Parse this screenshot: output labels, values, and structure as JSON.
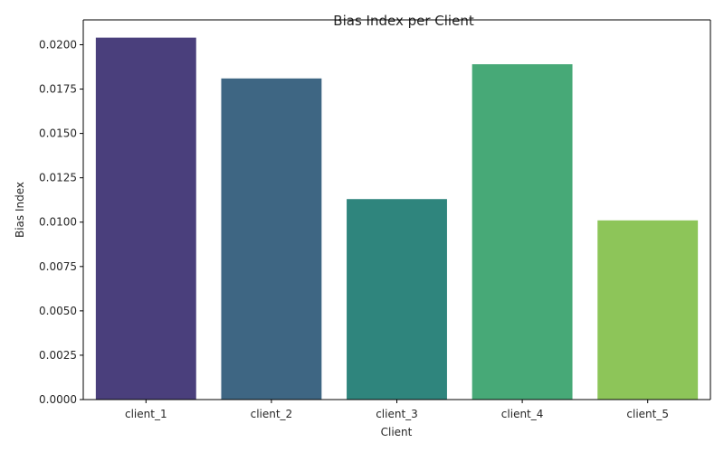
{
  "chart_data": {
    "type": "bar",
    "title": "Bias Index per Client",
    "xlabel": "Client",
    "ylabel": "Bias Index",
    "categories": [
      "client_1",
      "client_2",
      "client_3",
      "client_4",
      "client_5"
    ],
    "values": [
      0.0204,
      0.0181,
      0.0113,
      0.0189,
      0.0101
    ],
    "ylim": [
      0,
      0.0214
    ],
    "yticks": [
      0.0,
      0.0025,
      0.005,
      0.0075,
      0.01,
      0.0125,
      0.015,
      0.0175,
      0.02
    ],
    "ytick_labels": [
      "0.0000",
      "0.0025",
      "0.0050",
      "0.0075",
      "0.0100",
      "0.0125",
      "0.0150",
      "0.0175",
      "0.0200"
    ],
    "colors": [
      "#4a3f7c",
      "#3e6683",
      "#2f857d",
      "#47a977",
      "#8dc559"
    ],
    "grid": false,
    "legend": "none"
  }
}
